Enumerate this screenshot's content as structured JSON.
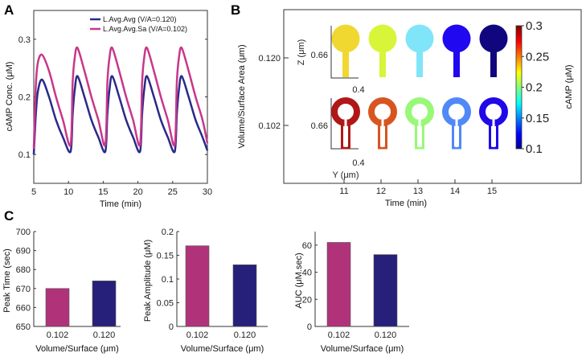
{
  "panel_labels": {
    "a": "A",
    "b": "B",
    "c": "C"
  },
  "chart_data": [
    {
      "id": "A",
      "type": "line",
      "xlabel": "Time (min)",
      "ylabel": "cAMP Conc. (μM)",
      "xlim": [
        5,
        30
      ],
      "ylim": [
        0.05,
        0.35
      ],
      "xticks": [
        5,
        10,
        15,
        20,
        25,
        30
      ],
      "yticks": [
        0.1,
        0.2,
        0.3
      ],
      "legend_position": "top-right",
      "x": [
        5,
        5.3,
        5.6,
        6.2,
        7.2,
        8.2,
        9.2,
        10.3,
        10.6,
        10.9,
        11.3,
        12.3,
        13.3,
        14.3,
        15.3,
        15.6,
        15.9,
        16.3,
        17.3,
        18.3,
        19.3,
        20.3,
        20.6,
        20.9,
        21.3,
        22.3,
        23.3,
        24.3,
        25.3,
        25.6,
        25.9,
        26.3,
        27.3,
        28.3,
        29.3,
        30
      ],
      "series": [
        {
          "name": "L.Avg.Avg (V/A=0.120)",
          "color": "#2a2a8a",
          "values": [
            0.1,
            0.17,
            0.21,
            0.23,
            0.2,
            0.16,
            0.13,
            0.105,
            0.17,
            0.212,
            0.236,
            0.2,
            0.16,
            0.13,
            0.105,
            0.17,
            0.212,
            0.236,
            0.2,
            0.16,
            0.13,
            0.105,
            0.17,
            0.212,
            0.236,
            0.2,
            0.16,
            0.13,
            0.105,
            0.17,
            0.212,
            0.236,
            0.2,
            0.16,
            0.13,
            0.107
          ]
        },
        {
          "name": "L.Avg.Avg.Sa (V/A=0.102)",
          "color": "#c8378a",
          "values": [
            0.11,
            0.22,
            0.26,
            0.273,
            0.245,
            0.2,
            0.16,
            0.117,
            0.225,
            0.268,
            0.285,
            0.245,
            0.2,
            0.16,
            0.117,
            0.225,
            0.268,
            0.285,
            0.245,
            0.2,
            0.16,
            0.117,
            0.225,
            0.268,
            0.285,
            0.245,
            0.2,
            0.16,
            0.117,
            0.225,
            0.268,
            0.285,
            0.245,
            0.2,
            0.16,
            0.12
          ]
        }
      ]
    },
    {
      "id": "B",
      "type": "heatmap",
      "xlabel": "Time (min)",
      "ylabel": "Volume/Surface Area (μm)",
      "xticks": [
        "11",
        "12",
        "13",
        "14",
        "15"
      ],
      "yticks": [
        "0.120",
        "0.102"
      ],
      "inset": {
        "z_label": "Z (μm)",
        "y_label": "Y (μm)",
        "z_tick": "0.66",
        "y_tick": "0.4"
      },
      "colorbar": {
        "label": "cAMP (μM)",
        "range": [
          0.1,
          0.3
        ],
        "ticks": [
          "0.3",
          "0.25",
          "0.2",
          "0.15",
          "0.1"
        ]
      },
      "rows": [
        {
          "va": "0.120",
          "shape": "solid",
          "camp": [
            0.22,
            0.205,
            0.17,
            0.12,
            0.1
          ],
          "colors": [
            "#f0d830",
            "#d8f53a",
            "#80e5f8",
            "#2008f0",
            "#10067e"
          ]
        },
        {
          "va": "0.102",
          "shape": "hollow",
          "camp": [
            0.29,
            0.265,
            0.195,
            0.155,
            0.125
          ],
          "colors": [
            "#b01818",
            "#d85520",
            "#98f878",
            "#5088f8",
            "#2008e8"
          ]
        }
      ]
    },
    {
      "id": "C1",
      "type": "bar",
      "categories": [
        "0.102",
        "0.120"
      ],
      "values": [
        670,
        674
      ],
      "colors": [
        "#b0337a",
        "#26207a"
      ],
      "ylabel": "Peak Time (sec)",
      "xlabel": "Volume/Surface (μm)",
      "ylim": [
        650,
        700
      ],
      "yticks": [
        "650",
        "660",
        "670",
        "680",
        "690",
        "700"
      ]
    },
    {
      "id": "C2",
      "type": "bar",
      "categories": [
        "0.102",
        "0.120"
      ],
      "values": [
        0.17,
        0.13
      ],
      "colors": [
        "#b0337a",
        "#26207a"
      ],
      "ylabel": "Peak Amplitude (μM)",
      "xlabel": "Volume/Surface (μm)",
      "ylim": [
        0,
        0.2
      ],
      "yticks": [
        "0",
        "0.05",
        "0.1",
        "0.15",
        "0.2"
      ]
    },
    {
      "id": "C3",
      "type": "bar",
      "categories": [
        "0.102",
        "0.120"
      ],
      "values": [
        62,
        53
      ],
      "colors": [
        "#b0337a",
        "#26207a"
      ],
      "ylabel": "AUC (μM.sec)",
      "xlabel": "Volume/Surface (μm)",
      "ylim": [
        0,
        70
      ],
      "yticks": [
        "0",
        "20",
        "40",
        "60"
      ]
    }
  ]
}
